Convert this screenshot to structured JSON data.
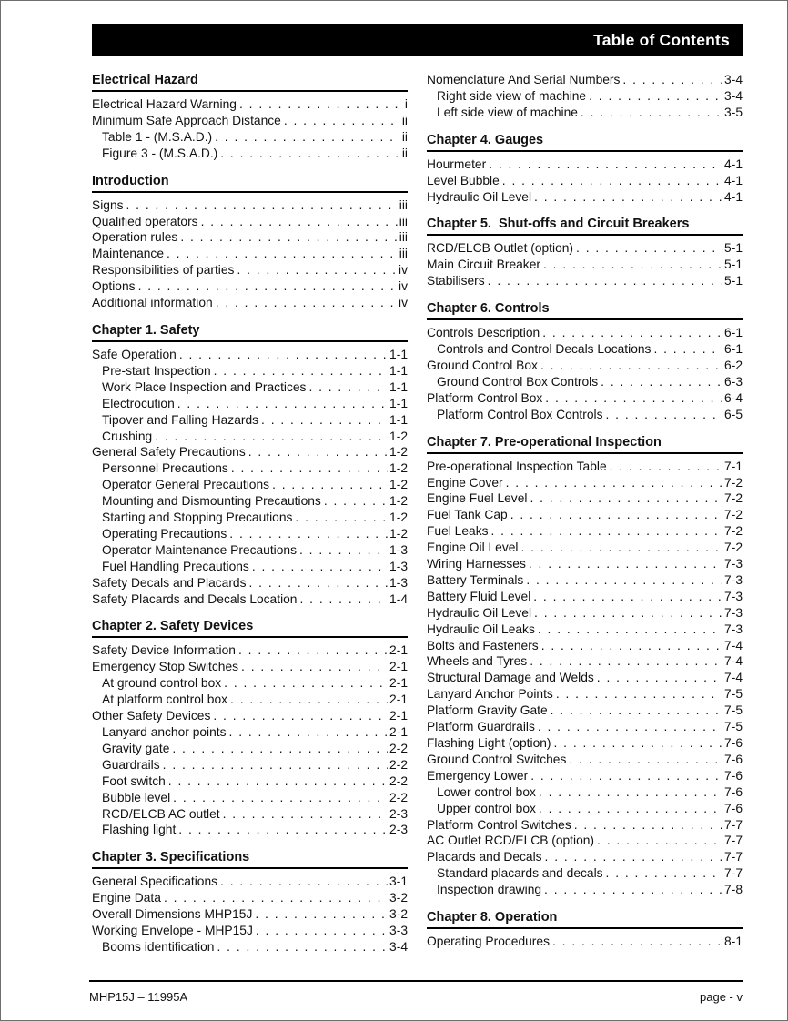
{
  "header": {
    "title": "Table of Contents"
  },
  "footer": {
    "left": "MHP15J – 11995A",
    "right": "page - v"
  },
  "colors": {
    "header_bg": "#000000",
    "header_text": "#ffffff",
    "body_text": "#111111",
    "page_background": "#ffffff",
    "page_border": "#6e6e6e"
  },
  "columns": [
    {
      "sections": [
        {
          "heading": "Electrical Hazard",
          "entries": [
            {
              "label": "Electrical Hazard Warning",
              "page": "i",
              "indent": 0
            },
            {
              "label": "Minimum Safe Approach Distance",
              "page": "ii",
              "indent": 0
            },
            {
              "label": "Table 1 - (M.S.A.D.)",
              "page": "ii",
              "indent": 1
            },
            {
              "label": "Figure 3 - (M.S.A.D.)",
              "page": "ii",
              "indent": 1
            }
          ]
        },
        {
          "heading": "Introduction",
          "entries": [
            {
              "label": "Signs",
              "page": "iii",
              "indent": 0
            },
            {
              "label": "Qualified operators",
              "page": "iii",
              "indent": 0
            },
            {
              "label": "Operation rules",
              "page": "iii",
              "indent": 0
            },
            {
              "label": "Maintenance",
              "page": "iii",
              "indent": 0
            },
            {
              "label": "Responsibilities of parties",
              "page": "iv",
              "indent": 0
            },
            {
              "label": "Options",
              "page": "iv",
              "indent": 0
            },
            {
              "label": "Additional information",
              "page": "iv",
              "indent": 0
            }
          ]
        },
        {
          "heading": "Chapter 1. Safety",
          "entries": [
            {
              "label": "Safe Operation",
              "page": "1-1",
              "indent": 0
            },
            {
              "label": "Pre-start Inspection",
              "page": "1-1",
              "indent": 1
            },
            {
              "label": "Work Place Inspection and Practices",
              "page": "1-1",
              "indent": 1
            },
            {
              "label": "Electrocution",
              "page": "1-1",
              "indent": 1
            },
            {
              "label": "Tipover and Falling Hazards",
              "page": "1-1",
              "indent": 1
            },
            {
              "label": "Crushing",
              "page": "1-2",
              "indent": 1
            },
            {
              "label": "General Safety Precautions",
              "page": "1-2",
              "indent": 0
            },
            {
              "label": "Personnel Precautions",
              "page": "1-2",
              "indent": 1
            },
            {
              "label": "Operator General Precautions",
              "page": "1-2",
              "indent": 1
            },
            {
              "label": "Mounting and Dismounting Precautions",
              "page": "1-2",
              "indent": 1
            },
            {
              "label": "Starting and Stopping Precautions",
              "page": "1-2",
              "indent": 1
            },
            {
              "label": "Operating Precautions",
              "page": "1-2",
              "indent": 1
            },
            {
              "label": "Operator Maintenance Precautions",
              "page": "1-3",
              "indent": 1
            },
            {
              "label": "Fuel Handling Precautions",
              "page": "1-3",
              "indent": 1
            },
            {
              "label": "Safety Decals and Placards",
              "page": "1-3",
              "indent": 0
            },
            {
              "label": "Safety Placards and Decals Location",
              "page": "1-4",
              "indent": 0
            }
          ]
        },
        {
          "heading": "Chapter 2. Safety Devices",
          "entries": [
            {
              "label": "Safety Device Information",
              "page": "2-1",
              "indent": 0
            },
            {
              "label": "Emergency Stop Switches",
              "page": "2-1",
              "indent": 0
            },
            {
              "label": "At ground control box",
              "page": "2-1",
              "indent": 1
            },
            {
              "label": "At platform control box",
              "page": "2-1",
              "indent": 1
            },
            {
              "label": "Other Safety Devices",
              "page": "2-1",
              "indent": 0
            },
            {
              "label": "Lanyard anchor points",
              "page": "2-1",
              "indent": 1
            },
            {
              "label": "Gravity gate",
              "page": "2-2",
              "indent": 1
            },
            {
              "label": "Guardrails",
              "page": "2-2",
              "indent": 1
            },
            {
              "label": "Foot switch",
              "page": "2-2",
              "indent": 1
            },
            {
              "label": "Bubble level",
              "page": "2-2",
              "indent": 1
            },
            {
              "label": "RCD/ELCB AC outlet",
              "page": "2-3",
              "indent": 1
            },
            {
              "label": "Flashing light",
              "page": "2-3",
              "indent": 1
            }
          ]
        },
        {
          "heading": "Chapter 3. Specifications",
          "entries": [
            {
              "label": "General Specifications",
              "page": "3-1",
              "indent": 0
            },
            {
              "label": "Engine Data",
              "page": "3-2",
              "indent": 0
            },
            {
              "label": "Overall Dimensions MHP15J",
              "page": "3-2",
              "indent": 0
            },
            {
              "label": "Working Envelope - MHP15J",
              "page": "3-3",
              "indent": 0
            },
            {
              "label": "Booms identification",
              "page": "3-4",
              "indent": 1
            }
          ]
        }
      ]
    },
    {
      "sections": [
        {
          "heading": "",
          "entries": [
            {
              "label": "Nomenclature And Serial Numbers",
              "page": "3-4",
              "indent": 0
            },
            {
              "label": "Right side view of machine",
              "page": "3-4",
              "indent": 1
            },
            {
              "label": "Left side view of machine",
              "page": "3-5",
              "indent": 1
            }
          ]
        },
        {
          "heading": "Chapter 4. Gauges",
          "entries": [
            {
              "label": "Hourmeter",
              "page": "4-1",
              "indent": 0
            },
            {
              "label": "Level Bubble",
              "page": "4-1",
              "indent": 0
            },
            {
              "label": "Hydraulic Oil Level",
              "page": "4-1",
              "indent": 0
            }
          ]
        },
        {
          "heading": "Chapter 5.  Shut-offs and Circuit Breakers",
          "entries": [
            {
              "label": "RCD/ELCB Outlet (option)",
              "page": "5-1",
              "indent": 0
            },
            {
              "label": "Main Circuit Breaker",
              "page": "5-1",
              "indent": 0
            },
            {
              "label": "Stabilisers",
              "page": "5-1",
              "indent": 0
            }
          ]
        },
        {
          "heading": "Chapter 6. Controls",
          "entries": [
            {
              "label": "Controls Description",
              "page": "6-1",
              "indent": 0
            },
            {
              "label": "Controls and Control Decals Locations",
              "page": "6-1",
              "indent": 1
            },
            {
              "label": "Ground Control Box",
              "page": "6-2",
              "indent": 0
            },
            {
              "label": "Ground Control Box Controls",
              "page": "6-3",
              "indent": 1
            },
            {
              "label": "Platform Control Box",
              "page": "6-4",
              "indent": 0
            },
            {
              "label": "Platform Control Box Controls",
              "page": "6-5",
              "indent": 1
            }
          ]
        },
        {
          "heading": "Chapter 7. Pre-operational Inspection",
          "entries": [
            {
              "label": "Pre-operational Inspection Table",
              "page": "7-1",
              "indent": 0
            },
            {
              "label": "Engine Cover",
              "page": "7-2",
              "indent": 0
            },
            {
              "label": "Engine Fuel Level",
              "page": "7-2",
              "indent": 0
            },
            {
              "label": "Fuel Tank Cap",
              "page": "7-2",
              "indent": 0
            },
            {
              "label": "Fuel Leaks",
              "page": "7-2",
              "indent": 0
            },
            {
              "label": "Engine Oil Level",
              "page": "7-2",
              "indent": 0
            },
            {
              "label": "Wiring Harnesses",
              "page": "7-3",
              "indent": 0
            },
            {
              "label": "Battery Terminals",
              "page": "7-3",
              "indent": 0
            },
            {
              "label": "Battery Fluid Level",
              "page": "7-3",
              "indent": 0
            },
            {
              "label": "Hydraulic Oil Level",
              "page": "7-3",
              "indent": 0
            },
            {
              "label": "Hydraulic Oil Leaks",
              "page": "7-3",
              "indent": 0
            },
            {
              "label": "Bolts and Fasteners",
              "page": "7-4",
              "indent": 0
            },
            {
              "label": "Wheels and Tyres",
              "page": "7-4",
              "indent": 0
            },
            {
              "label": "Structural Damage and Welds",
              "page": "7-4",
              "indent": 0
            },
            {
              "label": "Lanyard Anchor Points",
              "page": "7-5",
              "indent": 0
            },
            {
              "label": "Platform Gravity Gate",
              "page": "7-5",
              "indent": 0
            },
            {
              "label": "Platform Guardrails",
              "page": "7-5",
              "indent": 0
            },
            {
              "label": "Flashing Light (option)",
              "page": "7-6",
              "indent": 0
            },
            {
              "label": "Ground Control Switches",
              "page": "7-6",
              "indent": 0
            },
            {
              "label": "Emergency Lower",
              "page": "7-6",
              "indent": 0
            },
            {
              "label": "Lower control box",
              "page": "7-6",
              "indent": 1
            },
            {
              "label": "Upper control box",
              "page": "7-6",
              "indent": 1
            },
            {
              "label": "Platform Control Switches",
              "page": "7-7",
              "indent": 0
            },
            {
              "label": "AC Outlet RCD/ELCB (option)",
              "page": "7-7",
              "indent": 0
            },
            {
              "label": "Placards and Decals",
              "page": "7-7",
              "indent": 0
            },
            {
              "label": "Standard placards and decals",
              "page": "7-7",
              "indent": 1
            },
            {
              "label": "Inspection drawing",
              "page": "7-8",
              "indent": 1
            }
          ]
        },
        {
          "heading": "Chapter 8. Operation",
          "entries": [
            {
              "label": "Operating Procedures",
              "page": "8-1",
              "indent": 0
            }
          ]
        }
      ]
    }
  ]
}
